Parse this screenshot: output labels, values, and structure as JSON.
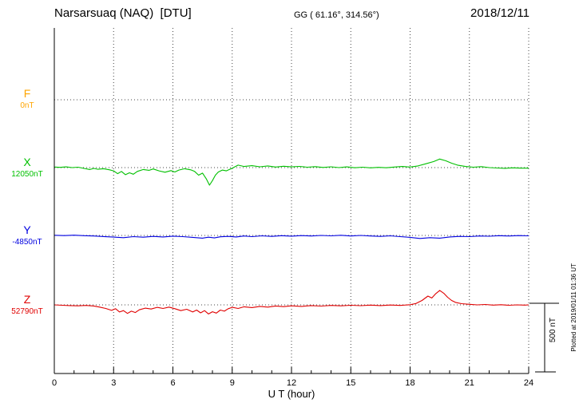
{
  "header": {
    "station": "Narsarsuaq (NAQ)  [DTU]",
    "coords": "GG ( 61.16°, 314.56°)",
    "date": "2018/12/11"
  },
  "footer": {
    "xlabel": "U T (hour)"
  },
  "side": {
    "scale_label": "500 nT",
    "plotted_at": "Plotted at 2019/01/11 01:36 UT"
  },
  "components": [
    {
      "name": "F",
      "value_label": "0nT",
      "color": "#ffa500"
    },
    {
      "name": "X",
      "value_label": "12050nT",
      "color": "#00c000"
    },
    {
      "name": "Y",
      "value_label": "-4850nT",
      "color": "#0000e0"
    },
    {
      "name": "Z",
      "value_label": "52790nT",
      "color": "#e00000"
    }
  ],
  "chart_data": {
    "type": "line",
    "title": "Narsarsuaq (NAQ) [DTU] magnetogram 2018/12/11",
    "xlabel": "U T (hour)",
    "x_range": [
      0,
      24
    ],
    "x_ticks": [
      0,
      3,
      6,
      9,
      12,
      15,
      18,
      21,
      24
    ],
    "grid": "dotted",
    "scale_nT_per_division": 500,
    "legend_position": "left",
    "series": [
      {
        "name": "F",
        "baseline_nT": 0,
        "color": "#ffa500",
        "points": []
      },
      {
        "name": "X",
        "baseline_nT": 12050,
        "color": "#00c000",
        "points": [
          [
            0,
            4
          ],
          [
            0.3,
            2
          ],
          [
            0.6,
            5
          ],
          [
            0.9,
            0
          ],
          [
            1.2,
            3
          ],
          [
            1.5,
            -6
          ],
          [
            1.8,
            -14
          ],
          [
            2.0,
            -6
          ],
          [
            2.2,
            -12
          ],
          [
            2.5,
            -8
          ],
          [
            2.8,
            -16
          ],
          [
            3.0,
            -24
          ],
          [
            3.2,
            -44
          ],
          [
            3.4,
            -28
          ],
          [
            3.6,
            -52
          ],
          [
            3.8,
            -38
          ],
          [
            4.0,
            -48
          ],
          [
            4.2,
            -28
          ],
          [
            4.5,
            -14
          ],
          [
            4.8,
            -20
          ],
          [
            5.0,
            -10
          ],
          [
            5.3,
            -24
          ],
          [
            5.6,
            -34
          ],
          [
            5.9,
            -22
          ],
          [
            6.1,
            -32
          ],
          [
            6.3,
            -18
          ],
          [
            6.6,
            -8
          ],
          [
            6.9,
            -16
          ],
          [
            7.1,
            -28
          ],
          [
            7.3,
            -55
          ],
          [
            7.5,
            -40
          ],
          [
            7.7,
            -85
          ],
          [
            7.85,
            -128
          ],
          [
            8.0,
            -95
          ],
          [
            8.15,
            -55
          ],
          [
            8.3,
            -32
          ],
          [
            8.5,
            -18
          ],
          [
            8.7,
            -24
          ],
          [
            9.0,
            -4
          ],
          [
            9.3,
            18
          ],
          [
            9.6,
            8
          ],
          [
            10.0,
            14
          ],
          [
            10.4,
            6
          ],
          [
            10.8,
            12
          ],
          [
            11.2,
            4
          ],
          [
            11.6,
            10
          ],
          [
            12.0,
            5
          ],
          [
            12.4,
            9
          ],
          [
            12.8,
            3
          ],
          [
            13.2,
            7
          ],
          [
            13.6,
            1
          ],
          [
            14.0,
            6
          ],
          [
            14.4,
            0
          ],
          [
            14.8,
            5
          ],
          [
            15.2,
            -1
          ],
          [
            15.6,
            3
          ],
          [
            16.0,
            -2
          ],
          [
            16.4,
            2
          ],
          [
            16.8,
            -1
          ],
          [
            17.2,
            4
          ],
          [
            17.6,
            8
          ],
          [
            18.0,
            4
          ],
          [
            18.4,
            12
          ],
          [
            18.8,
            28
          ],
          [
            19.2,
            44
          ],
          [
            19.5,
            62
          ],
          [
            19.8,
            50
          ],
          [
            20.1,
            32
          ],
          [
            20.4,
            18
          ],
          [
            20.8,
            8
          ],
          [
            21.2,
            3
          ],
          [
            21.6,
            7
          ],
          [
            22.0,
            0
          ],
          [
            22.4,
            -3
          ],
          [
            22.8,
            -5
          ],
          [
            23.2,
            -2
          ],
          [
            23.6,
            -4
          ],
          [
            24,
            -4
          ]
        ]
      },
      {
        "name": "Y",
        "baseline_nT": -4850,
        "color": "#0000e0",
        "points": [
          [
            0,
            1
          ],
          [
            0.5,
            -1
          ],
          [
            1,
            2
          ],
          [
            1.5,
            -2
          ],
          [
            2,
            -4
          ],
          [
            2.5,
            -8
          ],
          [
            3,
            -12
          ],
          [
            3.5,
            -16
          ],
          [
            4,
            -9
          ],
          [
            4.5,
            -13
          ],
          [
            5,
            -7
          ],
          [
            5.5,
            -11
          ],
          [
            6,
            -5
          ],
          [
            6.5,
            -9
          ],
          [
            7,
            -14
          ],
          [
            7.5,
            -20
          ],
          [
            7.8,
            -13
          ],
          [
            8.1,
            -18
          ],
          [
            8.4,
            -10
          ],
          [
            8.8,
            -7
          ],
          [
            9.2,
            -11
          ],
          [
            9.6,
            -4
          ],
          [
            10,
            -9
          ],
          [
            10.5,
            -3
          ],
          [
            11,
            -7
          ],
          [
            11.5,
            -2
          ],
          [
            12,
            -5
          ],
          [
            12.5,
            -1
          ],
          [
            13,
            -4
          ],
          [
            13.5,
            0
          ],
          [
            14,
            -3
          ],
          [
            14.5,
            1
          ],
          [
            15,
            -4
          ],
          [
            15.5,
            0
          ],
          [
            16,
            -4
          ],
          [
            16.5,
            -7
          ],
          [
            17,
            -3
          ],
          [
            17.5,
            -9
          ],
          [
            18,
            -14
          ],
          [
            18.5,
            -22
          ],
          [
            19,
            -16
          ],
          [
            19.5,
            -20
          ],
          [
            20,
            -11
          ],
          [
            20.5,
            -7
          ],
          [
            21,
            -9
          ],
          [
            21.5,
            -4
          ],
          [
            22,
            -6
          ],
          [
            22.5,
            -2
          ],
          [
            23,
            -4
          ],
          [
            23.5,
            -1
          ],
          [
            24,
            -3
          ]
        ]
      },
      {
        "name": "Z",
        "baseline_nT": 52790,
        "color": "#e00000",
        "points": [
          [
            0,
            0
          ],
          [
            0.4,
            -3
          ],
          [
            0.8,
            -5
          ],
          [
            1.2,
            -7
          ],
          [
            1.6,
            -4
          ],
          [
            2.0,
            -8
          ],
          [
            2.3,
            -16
          ],
          [
            2.6,
            -26
          ],
          [
            2.9,
            -40
          ],
          [
            3.1,
            -28
          ],
          [
            3.3,
            -52
          ],
          [
            3.5,
            -42
          ],
          [
            3.7,
            -62
          ],
          [
            3.9,
            -46
          ],
          [
            4.1,
            -56
          ],
          [
            4.3,
            -36
          ],
          [
            4.6,
            -24
          ],
          [
            4.9,
            -30
          ],
          [
            5.2,
            -18
          ],
          [
            5.5,
            -26
          ],
          [
            5.8,
            -16
          ],
          [
            6.1,
            -28
          ],
          [
            6.4,
            -42
          ],
          [
            6.7,
            -32
          ],
          [
            7.0,
            -52
          ],
          [
            7.2,
            -38
          ],
          [
            7.4,
            -58
          ],
          [
            7.6,
            -42
          ],
          [
            7.8,
            -66
          ],
          [
            8.0,
            -50
          ],
          [
            8.2,
            -60
          ],
          [
            8.4,
            -38
          ],
          [
            8.6,
            -46
          ],
          [
            8.8,
            -28
          ],
          [
            9.0,
            -18
          ],
          [
            9.3,
            -26
          ],
          [
            9.6,
            -14
          ],
          [
            10.0,
            -20
          ],
          [
            10.4,
            -11
          ],
          [
            10.8,
            -16
          ],
          [
            11.2,
            -8
          ],
          [
            11.6,
            -13
          ],
          [
            12.0,
            -7
          ],
          [
            12.5,
            -11
          ],
          [
            13.0,
            -5
          ],
          [
            13.5,
            -9
          ],
          [
            14.0,
            -4
          ],
          [
            14.5,
            -7
          ],
          [
            15.0,
            -3
          ],
          [
            15.5,
            -6
          ],
          [
            16.0,
            -2
          ],
          [
            16.5,
            -5
          ],
          [
            17.0,
            -1
          ],
          [
            17.5,
            -4
          ],
          [
            18.0,
            1
          ],
          [
            18.3,
            10
          ],
          [
            18.6,
            32
          ],
          [
            18.9,
            64
          ],
          [
            19.1,
            50
          ],
          [
            19.3,
            82
          ],
          [
            19.5,
            105
          ],
          [
            19.7,
            85
          ],
          [
            19.9,
            55
          ],
          [
            20.1,
            32
          ],
          [
            20.3,
            18
          ],
          [
            20.6,
            9
          ],
          [
            21.0,
            4
          ],
          [
            21.4,
            0
          ],
          [
            21.8,
            3
          ],
          [
            22.2,
            -2
          ],
          [
            22.6,
            1
          ],
          [
            23.0,
            -3
          ],
          [
            23.4,
            0
          ],
          [
            23.8,
            -2
          ],
          [
            24,
            0
          ]
        ]
      }
    ]
  }
}
